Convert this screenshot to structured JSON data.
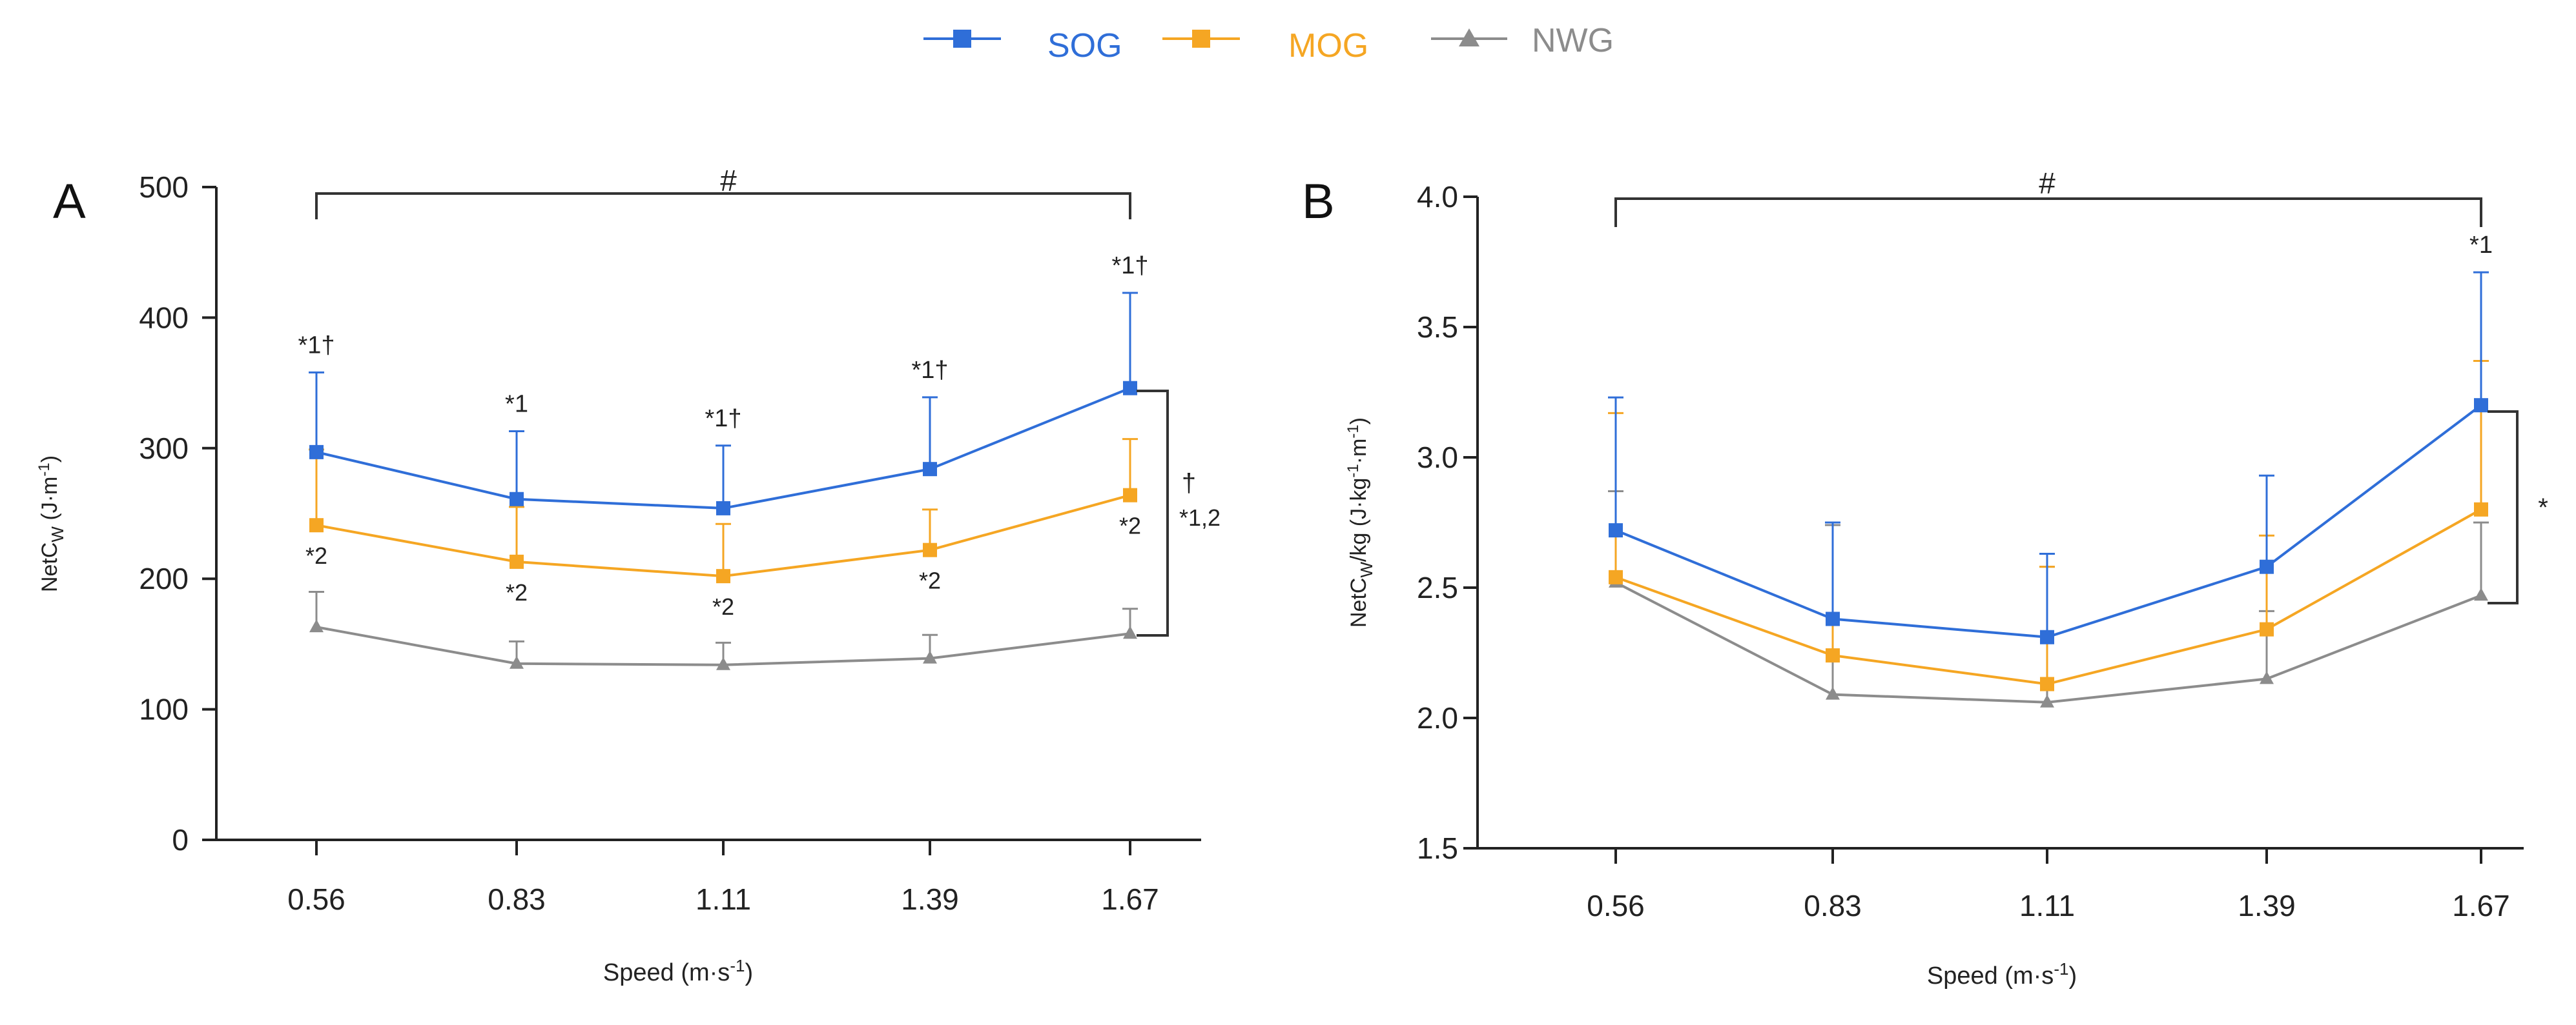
{
  "legend": [
    {
      "name": "SOG",
      "color": "#2f6ed8",
      "marker": "square"
    },
    {
      "name": "MOG",
      "color": "#f5a623",
      "marker": "square"
    },
    {
      "name": "NWG",
      "color": "#8c8c8c",
      "marker": "triangle"
    }
  ],
  "chart_data": [
    {
      "panel": "A",
      "type": "line",
      "x": [
        0.56,
        0.83,
        1.11,
        1.39,
        1.67
      ],
      "tick_labels": [
        "0.56",
        "0.83",
        "1.11",
        "1.39",
        "1.67"
      ],
      "xlabel": "Speed (m·s",
      "xlabel_sup": "-1",
      "xlabel_end": ")",
      "ylabel": "NetC",
      "ylabel_sub": "W",
      "ylabel_unit": " (J·m",
      "ylabel_unit_sup": "-1",
      "ylabel_unit_end": ")",
      "ylim": [
        0,
        500
      ],
      "yticks": [
        0,
        100,
        200,
        300,
        400,
        500
      ],
      "ytick_labels": [
        "0",
        "100",
        "200",
        "300",
        "400",
        "500"
      ],
      "series": [
        {
          "name": "SOG",
          "color": "#2f6ed8",
          "marker": "square",
          "values": [
            297,
            261,
            254,
            284,
            346
          ],
          "errors": [
            61,
            52,
            48,
            55,
            73
          ]
        },
        {
          "name": "MOG",
          "color": "#f5a623",
          "marker": "square",
          "values": [
            241,
            213,
            202,
            222,
            264
          ],
          "errors": [
            58,
            42,
            40,
            31,
            43
          ]
        },
        {
          "name": "NWG",
          "color": "#8c8c8c",
          "marker": "triangle",
          "values": [
            163,
            135,
            134,
            139,
            158
          ],
          "errors": [
            27,
            17,
            17,
            18,
            19
          ]
        }
      ],
      "annotations": {
        "top_bracket_label": "#",
        "upper_labels": [
          "*1†",
          "*1",
          "*1†",
          "*1†",
          "*1†"
        ],
        "lower_labels": [
          "*2",
          "*2",
          "*2",
          "*2",
          "*2"
        ],
        "right_bracket_label": "†",
        "right_bracket_label2": "*1,2"
      }
    },
    {
      "panel": "B",
      "type": "line",
      "x": [
        0.56,
        0.83,
        1.11,
        1.39,
        1.67
      ],
      "tick_labels": [
        "0.56",
        "0.83",
        "1.11",
        "1.39",
        "1.67"
      ],
      "xlabel": "Speed (m·s",
      "xlabel_sup": "-1",
      "xlabel_end": ")",
      "ylabel": "NetC",
      "ylabel_sub": "W",
      "ylabel_unit": "/kg (J·kg",
      "ylabel_unit_sup": "-1",
      "ylabel_unit_mid": "·m",
      "ylabel_unit_sup2": "-1",
      "ylabel_unit_end": ")",
      "ylim": [
        1.5,
        4.0
      ],
      "yticks": [
        1.5,
        2.0,
        2.5,
        3.0,
        3.5,
        4.0
      ],
      "ytick_labels": [
        "1.5",
        "2.0",
        "2.5",
        "3.0",
        "3.5",
        "4.0"
      ],
      "series": [
        {
          "name": "SOG",
          "color": "#2f6ed8",
          "marker": "square",
          "values": [
            2.72,
            2.38,
            2.31,
            2.58,
            3.2
          ],
          "errors": [
            0.51,
            0.37,
            0.32,
            0.35,
            0.51
          ]
        },
        {
          "name": "MOG",
          "color": "#f5a623",
          "marker": "square",
          "values": [
            2.54,
            2.24,
            2.13,
            2.34,
            2.8
          ],
          "errors": [
            0.63,
            0.51,
            0.45,
            0.36,
            0.57
          ]
        },
        {
          "name": "NWG",
          "color": "#8c8c8c",
          "marker": "triangle",
          "values": [
            2.52,
            2.09,
            2.06,
            2.15,
            2.47
          ],
          "errors": [
            0.35,
            0.65,
            0.52,
            0.26,
            0.28
          ]
        }
      ],
      "annotations": {
        "top_bracket_label": "#",
        "upper_labels": [
          "",
          "",
          "",
          "",
          "*1"
        ],
        "right_bracket_label": "*"
      }
    }
  ]
}
